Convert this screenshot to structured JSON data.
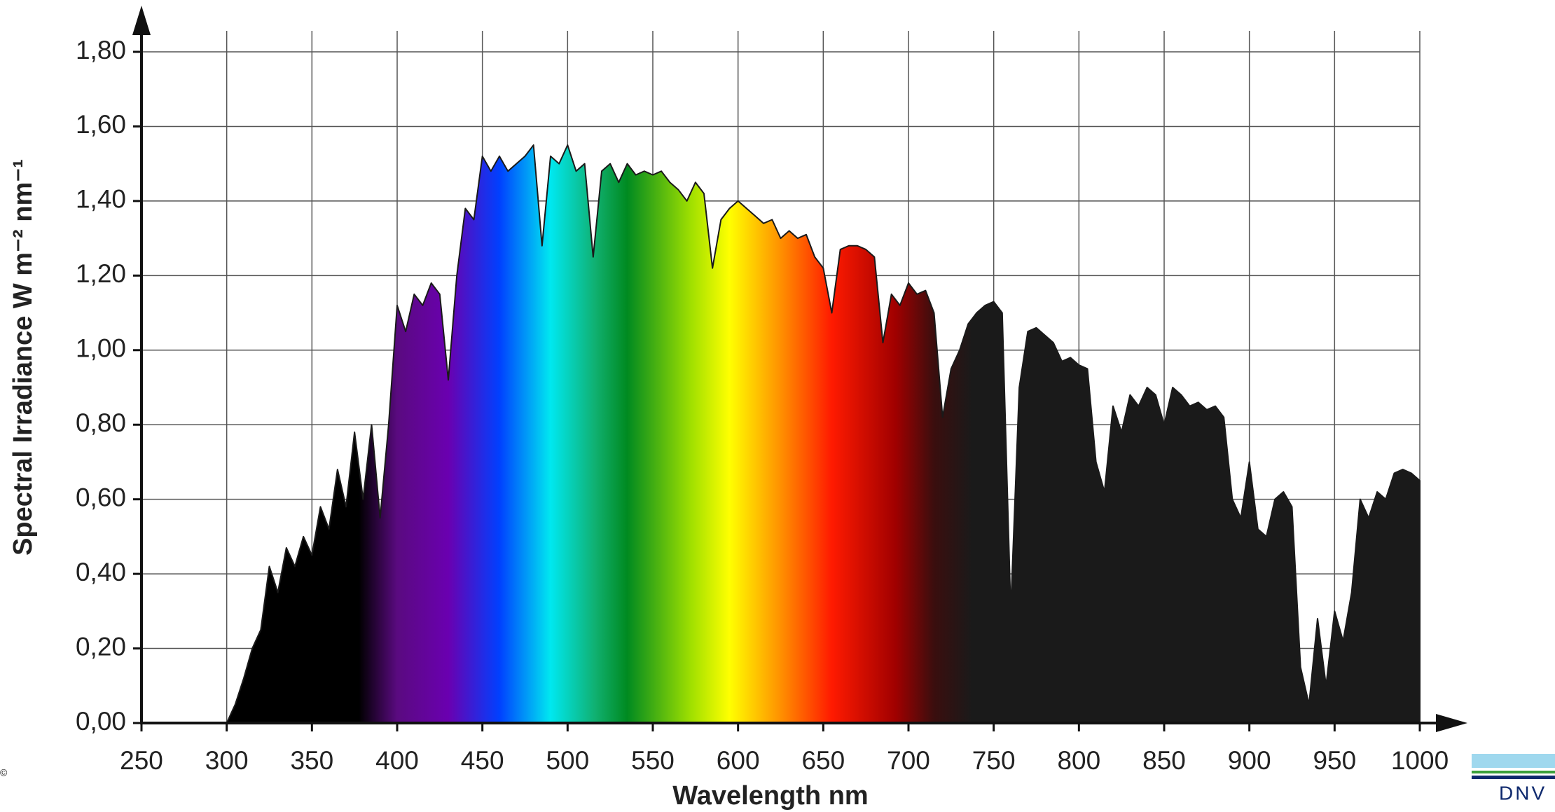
{
  "chart_data": {
    "type": "area",
    "xlabel": "Wavelength nm",
    "ylabel": "Spectral Irradiance W m⁻² nm⁻¹",
    "color": "#1a1a1a",
    "grid": true,
    "xlim": [
      250,
      1000
    ],
    "ylim": [
      0,
      1.8
    ],
    "xticks": [
      250,
      300,
      350,
      400,
      450,
      500,
      550,
      600,
      650,
      700,
      750,
      800,
      850,
      900,
      950,
      1000
    ],
    "yticks": [
      {
        "value": 0,
        "label": "0,00"
      },
      {
        "value": 0.2,
        "label": "0,20"
      },
      {
        "value": 0.4,
        "label": "0,40"
      },
      {
        "value": 0.6,
        "label": "0,60"
      },
      {
        "value": 0.8,
        "label": "0,80"
      },
      {
        "value": 1.0,
        "label": "1,00"
      },
      {
        "value": 1.2,
        "label": "1,20"
      },
      {
        "value": 1.4,
        "label": "1,40"
      },
      {
        "value": 1.6,
        "label": "1,60"
      },
      {
        "value": 1.8,
        "label": "1,80"
      }
    ],
    "x": [
      280,
      300,
      305,
      310,
      315,
      320,
      325,
      330,
      335,
      340,
      345,
      350,
      355,
      360,
      365,
      370,
      375,
      380,
      385,
      390,
      395,
      400,
      405,
      410,
      415,
      420,
      425,
      430,
      435,
      440,
      445,
      450,
      455,
      460,
      465,
      470,
      475,
      480,
      485,
      490,
      495,
      500,
      505,
      510,
      515,
      520,
      525,
      530,
      535,
      540,
      545,
      550,
      555,
      560,
      565,
      570,
      575,
      580,
      585,
      590,
      595,
      600,
      605,
      610,
      615,
      620,
      625,
      630,
      635,
      640,
      645,
      650,
      655,
      660,
      665,
      670,
      675,
      680,
      685,
      690,
      695,
      700,
      705,
      710,
      715,
      720,
      725,
      730,
      735,
      740,
      745,
      750,
      755,
      760,
      765,
      770,
      775,
      780,
      785,
      790,
      795,
      800,
      805,
      810,
      815,
      820,
      825,
      830,
      835,
      840,
      845,
      850,
      855,
      860,
      865,
      870,
      875,
      880,
      885,
      890,
      895,
      900,
      905,
      910,
      915,
      920,
      925,
      930,
      935,
      940,
      945,
      950,
      955,
      960,
      965,
      970,
      975,
      980,
      985,
      990,
      995,
      1000
    ],
    "values": [
      0,
      0,
      0.05,
      0.12,
      0.2,
      0.25,
      0.42,
      0.35,
      0.47,
      0.42,
      0.5,
      0.45,
      0.58,
      0.52,
      0.68,
      0.58,
      0.78,
      0.6,
      0.8,
      0.55,
      0.8,
      1.12,
      1.05,
      1.15,
      1.12,
      1.18,
      1.15,
      0.92,
      1.2,
      1.38,
      1.35,
      1.52,
      1.48,
      1.52,
      1.48,
      1.5,
      1.52,
      1.55,
      1.28,
      1.52,
      1.5,
      1.55,
      1.48,
      1.5,
      1.25,
      1.48,
      1.5,
      1.45,
      1.5,
      1.47,
      1.48,
      1.47,
      1.48,
      1.45,
      1.43,
      1.4,
      1.45,
      1.42,
      1.22,
      1.35,
      1.38,
      1.4,
      1.38,
      1.36,
      1.34,
      1.35,
      1.3,
      1.32,
      1.3,
      1.31,
      1.25,
      1.22,
      1.1,
      1.27,
      1.28,
      1.28,
      1.27,
      1.25,
      1.02,
      1.15,
      1.12,
      1.18,
      1.15,
      1.16,
      1.1,
      0.82,
      0.95,
      1.0,
      1.07,
      1.1,
      1.12,
      1.13,
      1.1,
      0.3,
      0.9,
      1.05,
      1.06,
      1.04,
      1.02,
      0.97,
      0.98,
      0.96,
      0.95,
      0.7,
      0.62,
      0.85,
      0.78,
      0.88,
      0.85,
      0.9,
      0.88,
      0.8,
      0.9,
      0.88,
      0.85,
      0.86,
      0.84,
      0.85,
      0.82,
      0.6,
      0.55,
      0.7,
      0.52,
      0.5,
      0.6,
      0.62,
      0.58,
      0.15,
      0.05,
      0.28,
      0.1,
      0.3,
      0.22,
      0.35,
      0.6,
      0.55,
      0.62,
      0.6,
      0.67,
      0.68,
      0.67,
      0.65
    ]
  },
  "copyright": "©",
  "logo": "DNV"
}
